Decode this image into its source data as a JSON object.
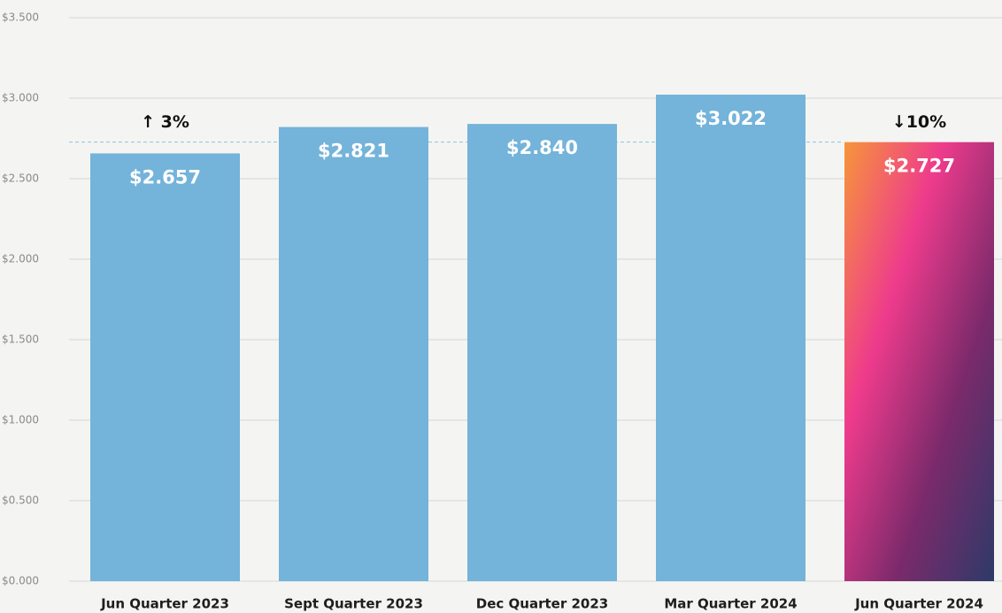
{
  "chart_data": {
    "type": "bar",
    "categories": [
      "Jun Quarter 2023",
      "Sept Quarter 2023",
      "Dec Quarter 2023",
      "Mar Quarter 2024",
      "Jun Quarter 2024"
    ],
    "values": [
      2.657,
      2.821,
      2.84,
      3.022,
      2.727
    ],
    "value_labels": [
      "$2.657",
      "$2.821",
      "$2.840",
      "$3.022",
      "$2.727"
    ],
    "color": "#74b3da",
    "highlight_gradient": [
      "#f7953a",
      "#ee3b8c",
      "#7b2a6b",
      "#2d3a68"
    ],
    "ylim": [
      0,
      3.5
    ],
    "yticks": [
      {
        "value": 0,
        "label": "$0.000"
      },
      {
        "value": 0.5,
        "label": "$0.500"
      },
      {
        "value": 1,
        "label": "$1.000"
      },
      {
        "value": 1.5,
        "label": "$1.500"
      },
      {
        "value": 2,
        "label": "$2.000"
      },
      {
        "value": 2.5,
        "label": "$2.500"
      },
      {
        "value": 3,
        "label": "$3.000"
      },
      {
        "value": 3.5,
        "label": "$3.500"
      }
    ],
    "grid": true,
    "annotations": [
      {
        "text": "↑ 3%",
        "category": "Jun Quarter 2023"
      },
      {
        "text": "↓10%",
        "category": "Jun Quarter 2024"
      }
    ]
  }
}
